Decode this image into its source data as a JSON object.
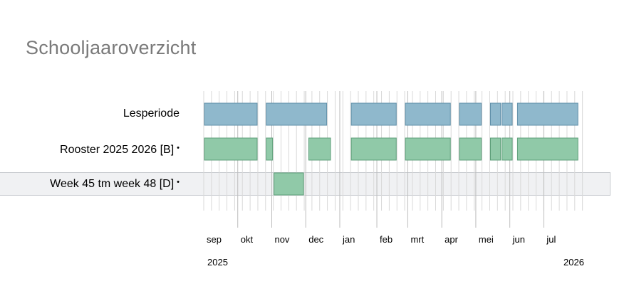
{
  "page": {
    "title": "Schooljaaroverzicht"
  },
  "rows": [
    {
      "label": "Lesperiode",
      "marker": ""
    },
    {
      "label": "Rooster 2025 2026 [B]",
      "marker": "•"
    },
    {
      "label": "Week 45 tm week 48 [D]",
      "marker": "•",
      "selected": true
    }
  ],
  "timeline": {
    "months": [
      "sep",
      "okt",
      "nov",
      "dec",
      "jan",
      "feb",
      "mrt",
      "apr",
      "mei",
      "jun",
      "jul"
    ],
    "years": {
      "start": "2025",
      "end": "2026"
    }
  },
  "colors": {
    "lesperiode_fill": "#8fb8cc",
    "lesperiode_stroke": "#5f8fa8",
    "rooster_fill": "#90c9a8",
    "rooster_stroke": "#5c9e78",
    "gridline": "#d9d9d9",
    "gridline_major": "#bdbdbd"
  },
  "blocks": {
    "lesperiode": [
      {
        "from_week": 0,
        "weeks": 7
      },
      {
        "from_week": 8,
        "weeks": 8
      },
      {
        "from_week": 19,
        "weeks": 6
      },
      {
        "from_week": 26,
        "weeks": 6
      },
      {
        "from_week": 33,
        "weeks": 3
      },
      {
        "from_week": 37,
        "weeks": 1.5
      },
      {
        "from_week": 38.5,
        "weeks": 1.5
      },
      {
        "from_week": 40.5,
        "weeks": 8
      }
    ],
    "rooster": [
      {
        "from_week": 0,
        "weeks": 7
      },
      {
        "from_week": 8,
        "weeks": 1
      },
      {
        "from_week": 13.5,
        "weeks": 3
      },
      {
        "from_week": 19,
        "weeks": 6
      },
      {
        "from_week": 26,
        "weeks": 6
      },
      {
        "from_week": 33,
        "weeks": 3
      },
      {
        "from_week": 37,
        "weeks": 1.5
      },
      {
        "from_week": 38.5,
        "weeks": 1.5
      },
      {
        "from_week": 40.5,
        "weeks": 8
      }
    ],
    "week45": [
      {
        "from_week": 9,
        "weeks": 4
      }
    ]
  }
}
